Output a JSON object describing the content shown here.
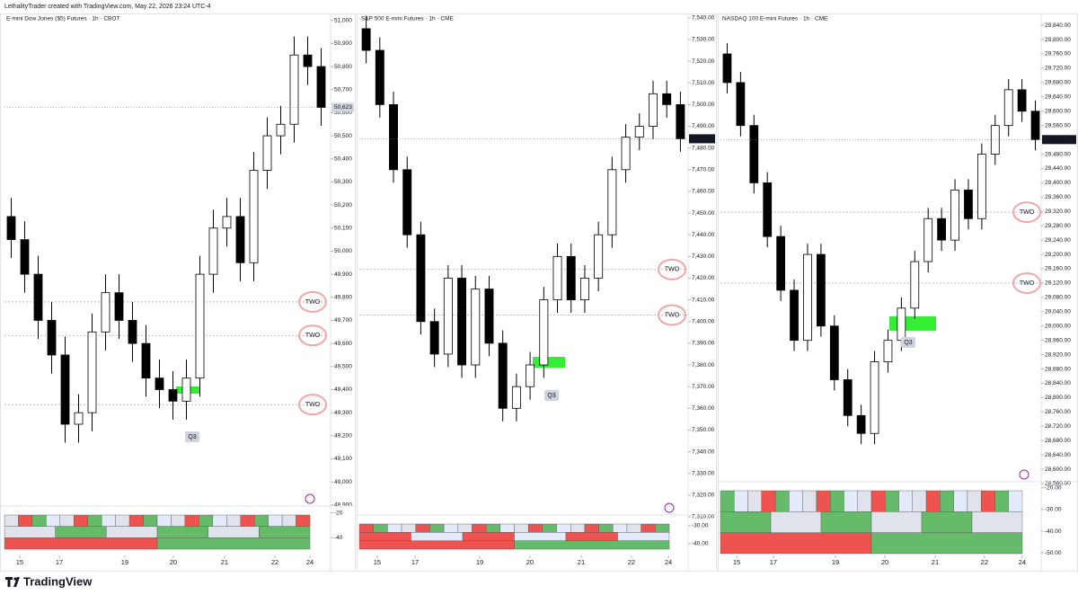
{
  "header": "LethalityTrader created with TradingView.com, May 22, 2026 23:24 UTC-4",
  "footer": "TradingView",
  "chart_data": [
    {
      "type": "candlestick",
      "title": "E-mini Dow Jones ($5) Futures · 1h · CBOT",
      "up_color": "#ffffff",
      "down_color": "#000000",
      "open": [
        50150,
        50050,
        49900,
        49700,
        49550,
        49250,
        49300,
        49650,
        49820,
        49700,
        49600,
        49450,
        49400,
        49350,
        49450,
        49900,
        50100,
        50150,
        49950,
        50350,
        50500,
        50550,
        50850,
        50800
      ],
      "high": [
        50230,
        50130,
        49980,
        49780,
        49630,
        49380,
        49730,
        49900,
        49900,
        49780,
        49680,
        49530,
        49480,
        49530,
        49980,
        50180,
        50230,
        50230,
        50430,
        50580,
        50630,
        50930,
        50930,
        50880
      ],
      "low": [
        49970,
        49820,
        49620,
        49470,
        49170,
        49170,
        49220,
        49570,
        49620,
        49520,
        49370,
        49320,
        49270,
        49270,
        49370,
        49820,
        50020,
        49870,
        49870,
        50270,
        50420,
        50470,
        50720,
        50543
      ],
      "close": [
        50050,
        49900,
        49700,
        49550,
        49250,
        49300,
        49650,
        49820,
        49700,
        49600,
        49450,
        49400,
        49350,
        49450,
        49900,
        50100,
        50150,
        49950,
        50350,
        50500,
        50550,
        50850,
        50800,
        50623
      ],
      "ylim": [
        48880,
        51030
      ],
      "yticks": [
        {
          "value": 51000,
          "label": "51,000"
        },
        {
          "value": 50900,
          "label": "50,900"
        },
        {
          "value": 50800,
          "label": "50,800"
        },
        {
          "value": 50700,
          "label": "50,700"
        },
        {
          "value": 50600,
          "label": "50,600"
        },
        {
          "value": 50500,
          "label": "50,500"
        },
        {
          "value": 50400,
          "label": "50,400"
        },
        {
          "value": 50300,
          "label": "50,300"
        },
        {
          "value": 50200,
          "label": "50,200"
        },
        {
          "value": 50100,
          "label": "50,100"
        },
        {
          "value": 50000,
          "label": "50,000"
        },
        {
          "value": 49900,
          "label": "49,900"
        },
        {
          "value": 49800,
          "label": "49,800"
        },
        {
          "value": 49700,
          "label": "49,700"
        },
        {
          "value": 49600,
          "label": "49,600"
        },
        {
          "value": 49500,
          "label": "49,500"
        },
        {
          "value": 49400,
          "label": "49,400"
        },
        {
          "value": 49300,
          "label": "49,300"
        },
        {
          "value": 49200,
          "label": "49,200"
        },
        {
          "value": 49100,
          "label": "49,100"
        },
        {
          "value": 49000,
          "label": "49,000"
        },
        {
          "value": 48900,
          "label": "48,900"
        }
      ],
      "last_price": {
        "value": 50623,
        "label": "50,623"
      },
      "xticks": [
        {
          "value": 0.63,
          "label": "15"
        },
        {
          "value": 3.57,
          "label": "17"
        },
        {
          "value": 8.43,
          "label": "19"
        },
        {
          "value": 12.03,
          "label": "20"
        },
        {
          "value": 15.83,
          "label": "21"
        },
        {
          "value": 19.57,
          "label": "22"
        },
        {
          "value": 22.17,
          "label": "24"
        }
      ],
      "levels": [
        {
          "label": "TWO",
          "value": 49780
        },
        {
          "label": "TWO",
          "value": 49635
        },
        {
          "label": "TWO",
          "value": 49335
        }
      ],
      "annotation": "Q3",
      "indicator_ylim": [
        -52,
        -16
      ],
      "indicator_ticks": [
        -20,
        -40
      ]
    },
    {
      "type": "candlestick",
      "title": "S&P 500 E-mini Futures · 1h · CME",
      "up_color": "#ffffff",
      "down_color": "#000000",
      "open": [
        7535,
        7525,
        7500,
        7470,
        7440,
        7400,
        7385,
        7420,
        7380,
        7415,
        7390,
        7360,
        7370,
        7380,
        7410,
        7430,
        7410,
        7420,
        7440,
        7470,
        7485,
        7490,
        7505,
        7500
      ],
      "high": [
        7541,
        7531,
        7506,
        7476,
        7446,
        7406,
        7426,
        7426,
        7421,
        7421,
        7396,
        7376,
        7386,
        7416,
        7436,
        7436,
        7426,
        7446,
        7476,
        7491,
        7496,
        7511,
        7511,
        7506
      ],
      "low": [
        7519,
        7494,
        7464,
        7434,
        7394,
        7379,
        7379,
        7374,
        7374,
        7384,
        7354,
        7354,
        7364,
        7374,
        7404,
        7404,
        7404,
        7414,
        7434,
        7464,
        7479,
        7484,
        7494,
        7478.25
      ],
      "close": [
        7525,
        7500,
        7470,
        7440,
        7400,
        7385,
        7420,
        7380,
        7415,
        7390,
        7360,
        7370,
        7380,
        7410,
        7430,
        7410,
        7420,
        7440,
        7470,
        7485,
        7490,
        7505,
        7500,
        7484.25
      ],
      "ylim": [
        7310,
        7542
      ],
      "yticks": [
        {
          "value": 7540,
          "label": "7,540.00"
        },
        {
          "value": 7530,
          "label": "7,530.00"
        },
        {
          "value": 7520,
          "label": "7,520.00"
        },
        {
          "value": 7510,
          "label": "7,510.00"
        },
        {
          "value": 7500,
          "label": "7,500.00"
        },
        {
          "value": 7490,
          "label": "7,490.00"
        },
        {
          "value": 7480,
          "label": "7,480.00"
        },
        {
          "value": 7470,
          "label": "7,470.00"
        },
        {
          "value": 7460,
          "label": "7,460.00"
        },
        {
          "value": 7450,
          "label": "7,450.00"
        },
        {
          "value": 7440,
          "label": "7,440.00"
        },
        {
          "value": 7430,
          "label": "7,430.00"
        },
        {
          "value": 7420,
          "label": "7,420.00"
        },
        {
          "value": 7410,
          "label": "7,410.00"
        },
        {
          "value": 7400,
          "label": "7,400.00"
        },
        {
          "value": 7390,
          "label": "7,390.00"
        },
        {
          "value": 7380,
          "label": "7,380.00"
        },
        {
          "value": 7370,
          "label": "7,370.00"
        },
        {
          "value": 7360,
          "label": "7,360.00"
        },
        {
          "value": 7350,
          "label": "7,350.00"
        },
        {
          "value": 7340,
          "label": "7,340.00"
        },
        {
          "value": 7330,
          "label": "7,330.00"
        },
        {
          "value": 7320,
          "label": "7,320.00"
        },
        {
          "value": 7310,
          "label": "7,310.00"
        }
      ],
      "last_price": {
        "value": 7484.25,
        "label": "7,484.25"
      },
      "xticks": [
        {
          "value": 0.81,
          "label": "15"
        },
        {
          "value": 3.58,
          "label": "17"
        },
        {
          "value": 8.31,
          "label": "19"
        },
        {
          "value": 11.99,
          "label": "20"
        },
        {
          "value": 15.74,
          "label": "21"
        },
        {
          "value": 19.42,
          "label": "22"
        },
        {
          "value": 22.12,
          "label": "24"
        }
      ],
      "levels": [
        {
          "label": "TWO",
          "value": 7424
        },
        {
          "label": "TWO",
          "value": 7403
        }
      ],
      "annotation": "Q3",
      "indicator_ylim": [
        -45,
        -25
      ],
      "indicator_ticks": [
        {
          "value": -30,
          "label": "-30.00"
        },
        {
          "value": -40,
          "label": "-40.00"
        }
      ]
    },
    {
      "type": "candlestick",
      "title": "NASDAQ 100 E-mini Futures · 1h · CME",
      "up_color": "#ffffff",
      "down_color": "#000000",
      "open": [
        29760,
        29680,
        29560,
        29400,
        29250,
        29100,
        28960,
        29200,
        29000,
        28850,
        28750,
        28700,
        28900,
        28960,
        29050,
        29180,
        29300,
        29240,
        29380,
        29300,
        29480,
        29560,
        29660,
        29600
      ],
      "high": [
        29790,
        29710,
        29590,
        29430,
        29280,
        29130,
        29230,
        29230,
        29030,
        28880,
        28780,
        28930,
        28990,
        29080,
        29210,
        29330,
        29330,
        29410,
        29410,
        29510,
        29590,
        29690,
        29690,
        29630
      ],
      "low": [
        29650,
        29530,
        29370,
        29220,
        29070,
        28930,
        28930,
        28970,
        28820,
        28720,
        28670,
        28670,
        28870,
        28930,
        29020,
        29150,
        29210,
        29210,
        29270,
        29270,
        29450,
        29530,
        29570,
        29490.75
      ],
      "close": [
        29680,
        29560,
        29400,
        29250,
        29100,
        28960,
        29200,
        29000,
        28850,
        28750,
        28700,
        28900,
        28960,
        29050,
        29180,
        29300,
        29240,
        29380,
        29300,
        29480,
        29560,
        29660,
        29600,
        29520.75
      ],
      "ylim": [
        28560,
        29873
      ],
      "yticks": [
        {
          "value": 29840,
          "label": "29,840.00"
        },
        {
          "value": 29800,
          "label": "29,800.00"
        },
        {
          "value": 29760,
          "label": "29,760.00"
        },
        {
          "value": 29720,
          "label": "29,720.00"
        },
        {
          "value": 29680,
          "label": "29,680.00"
        },
        {
          "value": 29640,
          "label": "29,640.00"
        },
        {
          "value": 29600,
          "label": "29,600.00"
        },
        {
          "value": 29560,
          "label": "29,560.00"
        },
        {
          "value": 29520,
          "label": "29,520.00"
        },
        {
          "value": 29480,
          "label": "29,480.00"
        },
        {
          "value": 29440,
          "label": "29,440.00"
        },
        {
          "value": 29400,
          "label": "29,400.00"
        },
        {
          "value": 29360,
          "label": "29,360.00"
        },
        {
          "value": 29320,
          "label": "29,320.00"
        },
        {
          "value": 29280,
          "label": "29,280.00"
        },
        {
          "value": 29240,
          "label": "29,240.00"
        },
        {
          "value": 29200,
          "label": "29,200.00"
        },
        {
          "value": 29160,
          "label": "29,160.00"
        },
        {
          "value": 29120,
          "label": "29,120.00"
        },
        {
          "value": 29080,
          "label": "29,080.00"
        },
        {
          "value": 29040,
          "label": "29,040.00"
        },
        {
          "value": 29000,
          "label": "29,000.00"
        },
        {
          "value": 28960,
          "label": "28,960.00"
        },
        {
          "value": 28920,
          "label": "28,920.00"
        },
        {
          "value": 28880,
          "label": "28,880.00"
        },
        {
          "value": 28840,
          "label": "28,840.00"
        },
        {
          "value": 28800,
          "label": "28,800.00"
        },
        {
          "value": 28760,
          "label": "28,760.00"
        },
        {
          "value": 28720,
          "label": "28,720.00"
        },
        {
          "value": 28680,
          "label": "28,680.00"
        },
        {
          "value": 28640,
          "label": "28,640.00"
        },
        {
          "value": 28600,
          "label": "28,600.00"
        },
        {
          "value": 28560,
          "label": "28,560.00"
        }
      ],
      "last_price": {
        "value": 29520.75,
        "label": "29,520.75"
      },
      "xticks": [
        {
          "value": 0.71,
          "label": "15"
        },
        {
          "value": 3.45,
          "label": "17"
        },
        {
          "value": 8.08,
          "label": "19"
        },
        {
          "value": 11.77,
          "label": "20"
        },
        {
          "value": 15.52,
          "label": "21"
        },
        {
          "value": 19.2,
          "label": "22"
        },
        {
          "value": 22.02,
          "label": "24"
        }
      ],
      "levels": [
        {
          "label": "TWO",
          "value": 29318
        },
        {
          "label": "TWO",
          "value": 29120
        }
      ],
      "annotation": "Q3",
      "indicator_ylim": [
        -52,
        -18
      ],
      "indicator_ticks": [
        {
          "value": -20,
          "label": "-20.00"
        },
        {
          "value": -30,
          "label": "-30.00"
        },
        {
          "value": -40,
          "label": "-40.00"
        },
        {
          "value": -50,
          "label": "-50.00"
        }
      ]
    }
  ]
}
